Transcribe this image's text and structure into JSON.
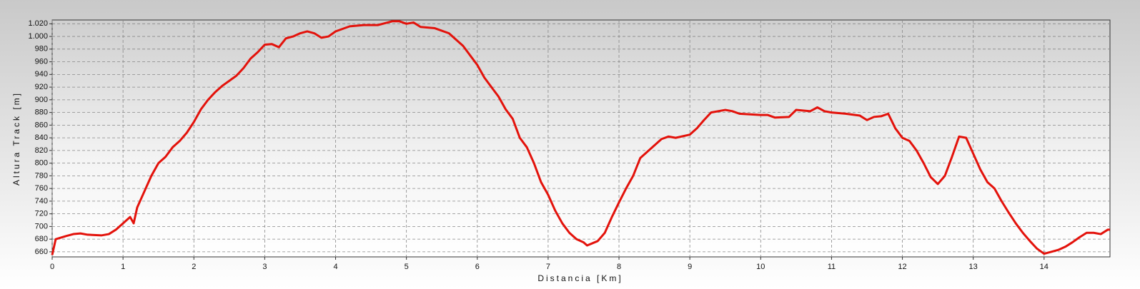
{
  "chart_data": {
    "type": "line",
    "xlabel": "Distancia [Km]",
    "ylabel": "Altura Track [m]",
    "x": [
      0,
      0.05,
      0.2,
      0.3,
      0.4,
      0.5,
      0.7,
      0.8,
      0.9,
      1.0,
      1.1,
      1.15,
      1.2,
      1.3,
      1.4,
      1.5,
      1.6,
      1.7,
      1.8,
      1.9,
      2.0,
      2.1,
      2.2,
      2.3,
      2.4,
      2.5,
      2.6,
      2.7,
      2.8,
      2.9,
      3.0,
      3.1,
      3.2,
      3.3,
      3.4,
      3.5,
      3.6,
      3.7,
      3.8,
      3.9,
      4.0,
      4.2,
      4.4,
      4.6,
      4.8,
      4.9,
      5.0,
      5.1,
      5.2,
      5.4,
      5.6,
      5.7,
      5.8,
      5.9,
      6.0,
      6.1,
      6.2,
      6.3,
      6.4,
      6.5,
      6.6,
      6.7,
      6.8,
      6.9,
      7.0,
      7.1,
      7.2,
      7.3,
      7.4,
      7.5,
      7.55,
      7.7,
      7.8,
      7.9,
      8.0,
      8.1,
      8.2,
      8.3,
      8.4,
      8.5,
      8.6,
      8.7,
      8.8,
      9.0,
      9.1,
      9.2,
      9.3,
      9.5,
      9.6,
      9.7,
      10.0,
      10.1,
      10.2,
      10.4,
      10.5,
      10.7,
      10.8,
      10.9,
      11.0,
      11.2,
      11.4,
      11.5,
      11.6,
      11.7,
      11.8,
      11.9,
      12.0,
      12.1,
      12.2,
      12.3,
      12.4,
      12.5,
      12.6,
      12.7,
      12.8,
      12.9,
      13.0,
      13.1,
      13.2,
      13.3,
      13.4,
      13.5,
      13.6,
      13.7,
      13.8,
      13.9,
      14.0,
      14.1,
      14.2,
      14.3,
      14.4,
      14.5,
      14.6,
      14.7,
      14.8,
      14.9,
      14.93
    ],
    "series": [
      {
        "name": "Altura Track",
        "color": "#e3120b",
        "values": [
          655,
          680,
          685,
          688,
          689,
          687,
          686,
          688,
          695,
          705,
          715,
          705,
          730,
          755,
          780,
          800,
          810,
          825,
          835,
          848,
          865,
          885,
          900,
          912,
          922,
          930,
          938,
          950,
          965,
          975,
          987,
          988,
          983,
          997,
          1000,
          1005,
          1008,
          1005,
          998,
          1000,
          1008,
          1016,
          1018,
          1018,
          1024,
          1024,
          1020,
          1022,
          1015,
          1013,
          1005,
          995,
          985,
          970,
          955,
          935,
          920,
          905,
          885,
          870,
          840,
          825,
          800,
          770,
          750,
          725,
          705,
          690,
          680,
          675,
          670,
          677,
          690,
          715,
          738,
          760,
          780,
          808,
          818,
          828,
          838,
          842,
          840,
          845,
          855,
          868,
          880,
          884,
          882,
          878,
          876,
          876,
          872,
          873,
          884,
          882,
          888,
          882,
          880,
          878,
          875,
          868,
          873,
          874,
          878,
          855,
          840,
          835,
          820,
          800,
          778,
          767,
          780,
          810,
          842,
          840,
          815,
          790,
          770,
          760,
          740,
          722,
          705,
          690,
          677,
          665,
          657,
          660,
          663,
          668,
          675,
          683,
          690,
          690,
          688,
          695,
          695
        ]
      }
    ],
    "xlim": [
      0,
      14.93
    ],
    "ylim": [
      652,
      1026
    ],
    "xticks": [
      0,
      1,
      2,
      3,
      4,
      5,
      6,
      7,
      8,
      9,
      10,
      11,
      12,
      13,
      14
    ],
    "yticks": [
      660,
      680,
      700,
      720,
      740,
      760,
      780,
      800,
      820,
      840,
      860,
      880,
      900,
      920,
      940,
      960,
      980,
      {
        "value": 1000,
        "label": "1.000"
      },
      {
        "value": 1020,
        "label": "1.020"
      }
    ],
    "grid": true
  }
}
